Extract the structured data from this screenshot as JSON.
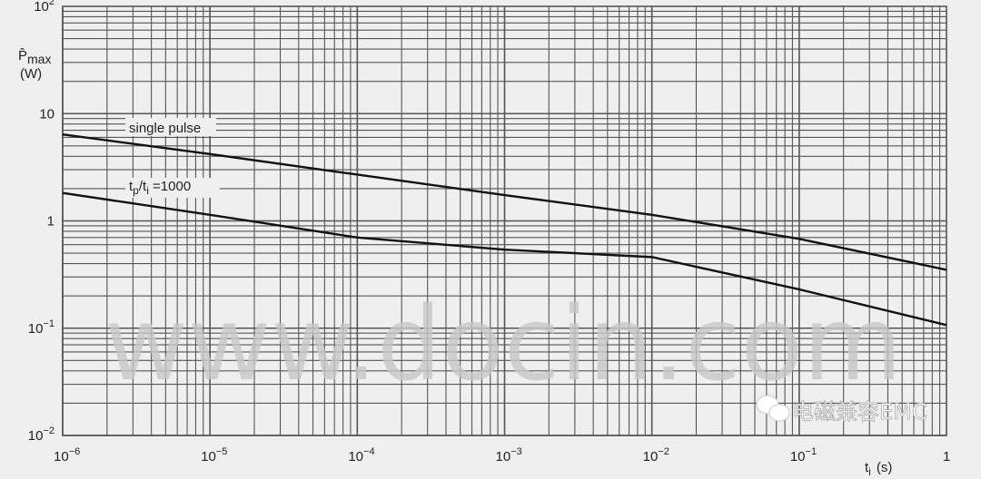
{
  "chart_data": {
    "type": "line",
    "x_scale": "log",
    "y_scale": "log",
    "xlim": [
      1e-06,
      1
    ],
    "ylim": [
      0.01,
      100
    ],
    "grid": true,
    "ylabel": {
      "symbol": "P̂",
      "sub": "max",
      "unit": "(W)"
    },
    "xlabel": {
      "symbol": "t",
      "sub": "i",
      "unit": "(s)"
    },
    "x_ticks": [
      {
        "value": 1e-06,
        "base": "10",
        "exp": "−6"
      },
      {
        "value": 1e-05,
        "base": "10",
        "exp": "−5"
      },
      {
        "value": 0.0001,
        "base": "10",
        "exp": "−4"
      },
      {
        "value": 0.001,
        "base": "10",
        "exp": "−3"
      },
      {
        "value": 0.01,
        "base": "10",
        "exp": "−2"
      },
      {
        "value": 0.1,
        "base": "10",
        "exp": "−1"
      },
      {
        "value": 1,
        "base": "1",
        "exp": ""
      }
    ],
    "y_ticks": [
      {
        "value": 100,
        "base": "10",
        "exp": "2"
      },
      {
        "value": 10,
        "base": "10",
        "exp": ""
      },
      {
        "value": 1,
        "base": "1",
        "exp": ""
      },
      {
        "value": 0.1,
        "base": "10",
        "exp": "−1"
      },
      {
        "value": 0.01,
        "base": "10",
        "exp": "−2"
      }
    ],
    "series": [
      {
        "name": "single pulse",
        "label": {
          "text": "single pulse"
        },
        "x": [
          1e-06,
          1e-05,
          0.0001,
          0.001,
          0.01,
          0.1,
          1
        ],
        "y": [
          6.4,
          4.2,
          2.7,
          1.74,
          1.14,
          0.68,
          0.35
        ]
      },
      {
        "name": "tp/ti = 1000",
        "label": {
          "t1": "t",
          "s1": "p",
          "mid": "/t",
          "s2": "i",
          "rest": " =1000"
        },
        "x": [
          1e-06,
          1e-05,
          0.0001,
          0.001,
          0.01,
          0.1,
          1
        ],
        "y": [
          1.82,
          1.14,
          0.7,
          0.54,
          0.46,
          0.23,
          0.107
        ]
      }
    ]
  },
  "watermark": "www.docin.com",
  "logo": "电磁兼容EMC",
  "colors": {
    "background": "#efefef",
    "grid": "#555555",
    "line": "#111111",
    "watermark": "#c8c8c8"
  }
}
